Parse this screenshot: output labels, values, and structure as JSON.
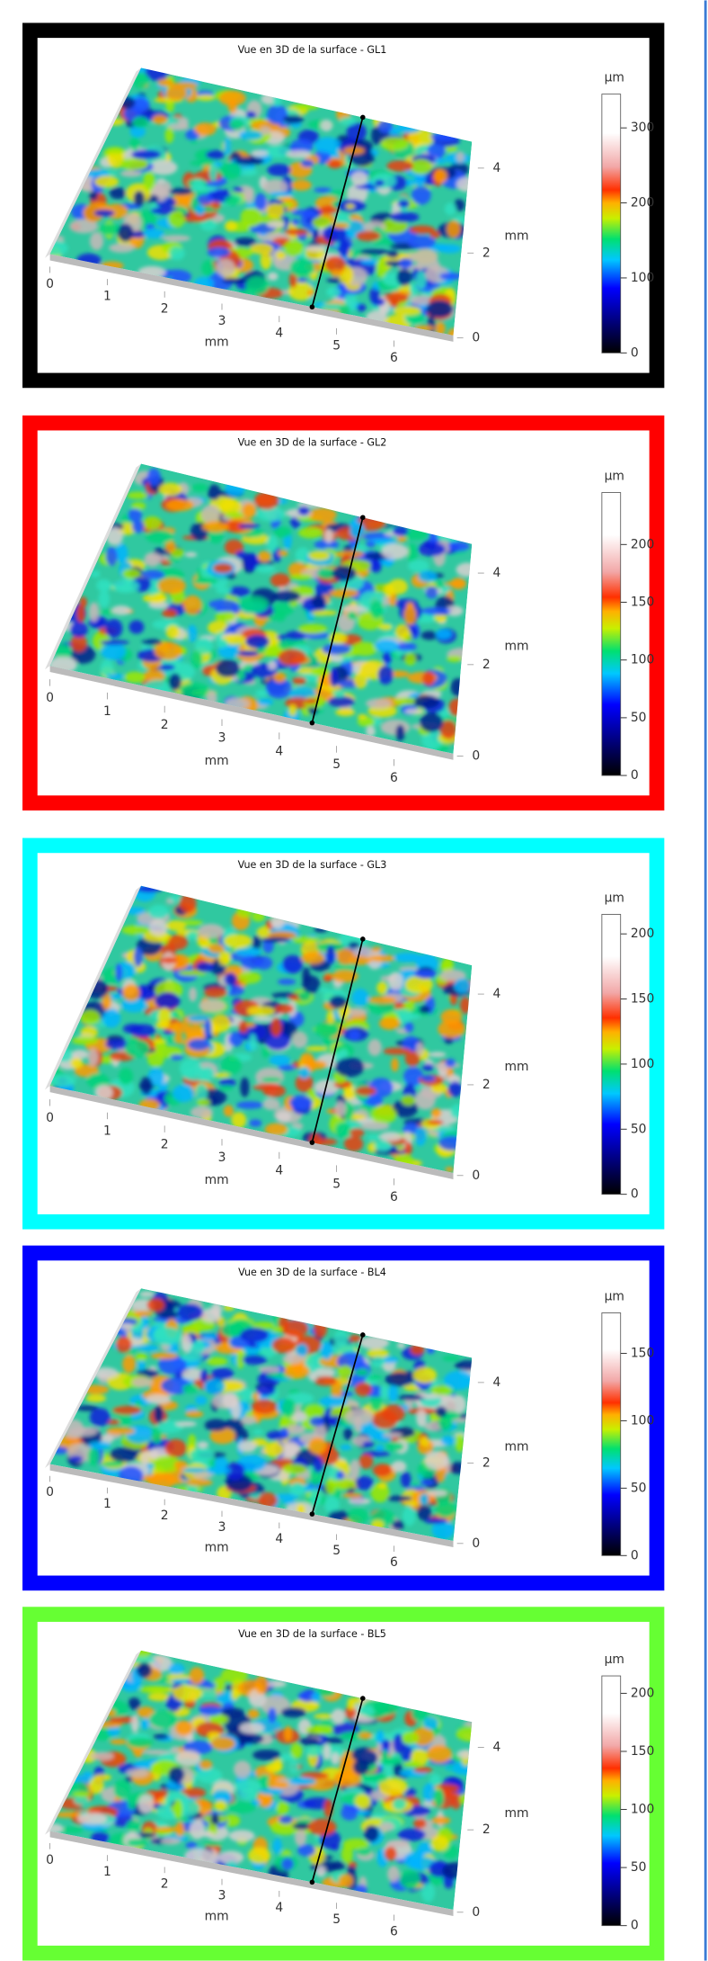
{
  "panels": [
    {
      "title": "Vue en 3D de la surface - GL1",
      "border_color": "#000000",
      "x_label": "mm",
      "x_ticks": [
        0,
        1,
        2,
        3,
        4,
        5,
        6
      ],
      "xlim": [
        0,
        6.6
      ],
      "y_label": "mm",
      "y_ticks": [
        0,
        2,
        4
      ],
      "ylim": [
        0,
        4.8
      ],
      "colorbar_label": "µm",
      "colorbar_ticks": [
        0,
        100,
        200,
        300
      ],
      "colorbar_lim": [
        0,
        345
      ]
    },
    {
      "title": "Vue en 3D de la surface - GL2",
      "border_color": "#ff0000",
      "x_label": "mm",
      "x_ticks": [
        0,
        1,
        2,
        3,
        4,
        5,
        6
      ],
      "xlim": [
        0,
        6.6
      ],
      "y_label": "mm",
      "y_ticks": [
        0,
        2,
        4
      ],
      "ylim": [
        0,
        4.8
      ],
      "colorbar_label": "µm",
      "colorbar_ticks": [
        0,
        50,
        100,
        150,
        200
      ],
      "colorbar_lim": [
        0,
        245
      ]
    },
    {
      "title": "Vue en 3D de la surface - GL3",
      "border_color": "#00ffff",
      "x_label": "mm",
      "x_ticks": [
        0,
        1,
        2,
        3,
        4,
        5,
        6
      ],
      "xlim": [
        0,
        6.6
      ],
      "y_label": "mm",
      "y_ticks": [
        0,
        2,
        4
      ],
      "ylim": [
        0,
        4.8
      ],
      "colorbar_label": "µm",
      "colorbar_ticks": [
        0,
        50,
        100,
        150,
        200
      ],
      "colorbar_lim": [
        0,
        215
      ]
    },
    {
      "title": "Vue en 3D de la surface - BL4",
      "border_color": "#0000ff",
      "x_label": "mm",
      "x_ticks": [
        0,
        1,
        2,
        3,
        4,
        5,
        6
      ],
      "xlim": [
        0,
        6.6
      ],
      "y_label": "mm",
      "y_ticks": [
        0,
        2,
        4
      ],
      "ylim": [
        0,
        4.8
      ],
      "colorbar_label": "µm",
      "colorbar_ticks": [
        0,
        50,
        100,
        150
      ],
      "colorbar_lim": [
        0,
        180
      ]
    },
    {
      "title": "Vue en 3D de la surface - BL5",
      "border_color": "#66ff33",
      "x_label": "mm",
      "x_ticks": [
        0,
        1,
        2,
        3,
        4,
        5,
        6
      ],
      "xlim": [
        0,
        6.6
      ],
      "y_label": "mm",
      "y_ticks": [
        0,
        2,
        4
      ],
      "ylim": [
        0,
        4.8
      ],
      "colorbar_label": "µm",
      "colorbar_ticks": [
        0,
        50,
        100,
        150,
        200
      ],
      "colorbar_lim": [
        0,
        215
      ]
    }
  ]
}
